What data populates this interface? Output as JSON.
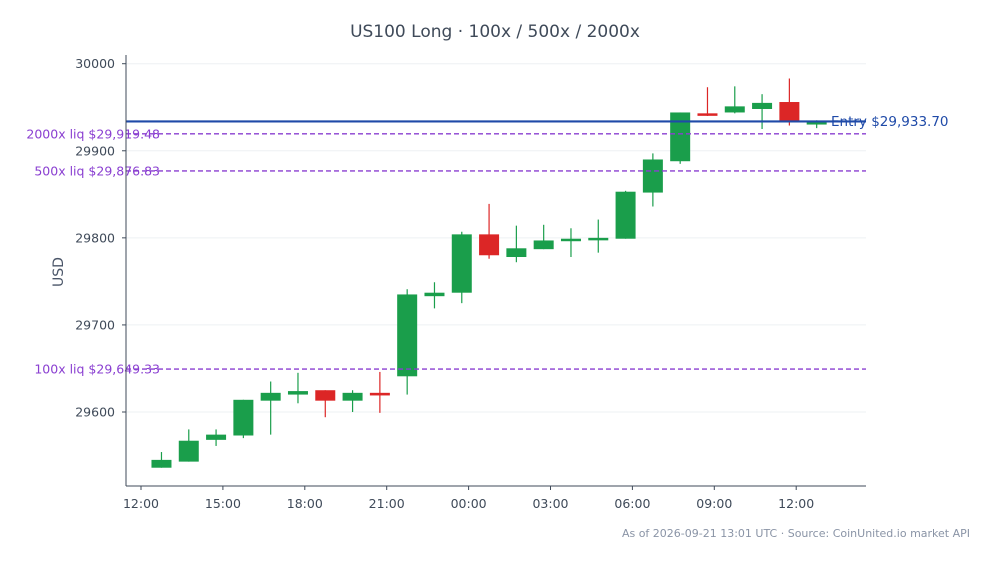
{
  "chart_data": {
    "type": "candlestick",
    "title": "US100 Long · 100x / 500x / 2000x",
    "ylabel": "USD",
    "xlabel": "",
    "ylim": [
      29515,
      30010
    ],
    "x_tick_labels": [
      "12:00",
      "15:00",
      "18:00",
      "21:00",
      "00:00",
      "03:00",
      "06:00",
      "09:00",
      "12:00"
    ],
    "y_ticks": [
      29600,
      29700,
      29800,
      29900,
      30000
    ],
    "grid": "horizontal",
    "colors": {
      "up": "#1a9e4b",
      "down": "#dc2626",
      "entry": "#1f4aa8",
      "liquidation": "#8a3fd1",
      "axis": "#3f4a59",
      "grid": "#eef0f3"
    },
    "candles": [
      {
        "time": "12:45",
        "open": 29536,
        "high": 29554,
        "low": 29536,
        "close": 29545
      },
      {
        "time": "13:45",
        "open": 29543,
        "high": 29580,
        "low": 29543,
        "close": 29567
      },
      {
        "time": "14:45",
        "open": 29568,
        "high": 29580,
        "low": 29561,
        "close": 29574
      },
      {
        "time": "15:45",
        "open": 29573,
        "high": 29614,
        "low": 29570,
        "close": 29614
      },
      {
        "time": "16:45",
        "open": 29613,
        "high": 29635,
        "low": 29574,
        "close": 29622
      },
      {
        "time": "17:45",
        "open": 29620,
        "high": 29645,
        "low": 29610,
        "close": 29624
      },
      {
        "time": "18:45",
        "open": 29625,
        "high": 29625,
        "low": 29594,
        "close": 29613
      },
      {
        "time": "19:45",
        "open": 29613,
        "high": 29625,
        "low": 29600,
        "close": 29622
      },
      {
        "time": "20:45",
        "open": 29622,
        "high": 29646,
        "low": 29599,
        "close": 29619
      },
      {
        "time": "21:45",
        "open": 29641,
        "high": 29741,
        "low": 29620,
        "close": 29735
      },
      {
        "time": "22:45",
        "open": 29733,
        "high": 29749,
        "low": 29719,
        "close": 29737
      },
      {
        "time": "23:45",
        "open": 29737,
        "high": 29807,
        "low": 29725,
        "close": 29804
      },
      {
        "time": "00:45",
        "open": 29804,
        "high": 29839,
        "low": 29776,
        "close": 29780
      },
      {
        "time": "01:45",
        "open": 29778,
        "high": 29814,
        "low": 29772,
        "close": 29788
      },
      {
        "time": "02:45",
        "open": 29787,
        "high": 29815,
        "low": 29787,
        "close": 29797
      },
      {
        "time": "03:45",
        "open": 29797,
        "high": 29811,
        "low": 29778,
        "close": 29799
      },
      {
        "time": "04:45",
        "open": 29799,
        "high": 29821,
        "low": 29783,
        "close": 29800
      },
      {
        "time": "05:45",
        "open": 29799,
        "high": 29854,
        "low": 29799,
        "close": 29853
      },
      {
        "time": "06:45",
        "open": 29852,
        "high": 29897,
        "low": 29836,
        "close": 29890
      },
      {
        "time": "07:45",
        "open": 29888,
        "high": 29944,
        "low": 29885,
        "close": 29944
      },
      {
        "time": "08:45",
        "open": 29943,
        "high": 29973,
        "low": 29940,
        "close": 29942
      },
      {
        "time": "09:45",
        "open": 29944,
        "high": 29974,
        "low": 29943,
        "close": 29951
      },
      {
        "time": "10:45",
        "open": 29948,
        "high": 29965,
        "low": 29925,
        "close": 29955
      },
      {
        "time": "11:45",
        "open": 29956,
        "high": 29983,
        "low": 29929,
        "close": 29934
      },
      {
        "time": "12:45",
        "open": 29933,
        "high": 29935,
        "low": 29926,
        "close": 29933
      }
    ],
    "entry": {
      "value": 29933.7,
      "label": "Entry $29,933.70"
    },
    "liquidations": [
      {
        "value": 29919.48,
        "label": "2000x liq $29,919.48"
      },
      {
        "value": 29876.83,
        "label": "500x liq $29,876.83"
      },
      {
        "value": 29649.33,
        "label": "100x liq $29,649.33"
      }
    ]
  },
  "footer": "As of 2026-09-21 13:01 UTC · Source: CoinUnited.io market API"
}
